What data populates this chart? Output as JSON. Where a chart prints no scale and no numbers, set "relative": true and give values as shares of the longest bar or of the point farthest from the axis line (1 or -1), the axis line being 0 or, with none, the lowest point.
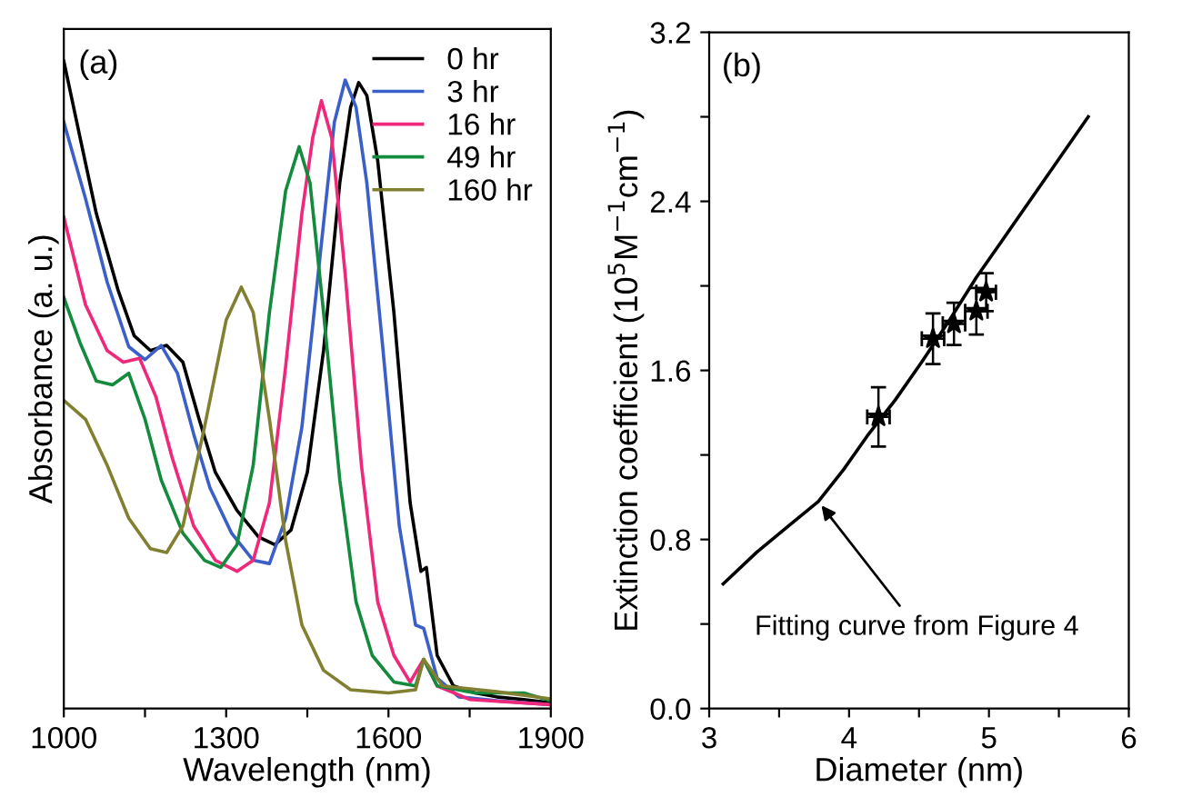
{
  "chart_data": [
    {
      "type": "line",
      "relative": true,
      "xlabel": "Wavelength (nm)",
      "ylabel": "Absorbance (a. u.)",
      "annotations": [
        "(a)"
      ],
      "xlim": [
        1000,
        1900
      ],
      "xticks": [
        1000,
        {
          "value": 1150,
          "label": null
        },
        1300,
        {
          "value": 1450,
          "label": null
        },
        1600,
        {
          "value": 1750,
          "label": null
        },
        1900
      ],
      "tick_labels": "x",
      "legend": "top right",
      "grid": false,
      "line_style": "solid",
      "marker": "none",
      "series": [
        {
          "name": "0 hr",
          "color": "#000000",
          "x": [
            1000,
            1030,
            1060,
            1100,
            1130,
            1160,
            1190,
            1220,
            1250,
            1280,
            1320,
            1360,
            1390,
            1420,
            1450,
            1480,
            1510,
            1530,
            1545,
            1560,
            1580,
            1610,
            1640,
            1660,
            1670,
            1690,
            1720,
            1760,
            1800,
            1850,
            1900
          ],
          "values": [
            1.0,
            0.882,
            0.765,
            0.647,
            0.576,
            0.553,
            0.561,
            0.535,
            0.447,
            0.365,
            0.306,
            0.265,
            0.253,
            0.276,
            0.365,
            0.553,
            0.812,
            0.929,
            0.967,
            0.947,
            0.847,
            0.612,
            0.318,
            0.212,
            0.218,
            0.082,
            0.035,
            0.024,
            0.018,
            0.014,
            0.009
          ]
        },
        {
          "name": "3 hr",
          "color": "#3a5fc8",
          "x": [
            1000,
            1040,
            1080,
            1120,
            1150,
            1180,
            1210,
            1240,
            1270,
            1310,
            1350,
            1380,
            1410,
            1440,
            1470,
            1500,
            1520,
            1540,
            1560,
            1590,
            1620,
            1650,
            1665,
            1690,
            1730,
            1800,
            1900
          ],
          "values": [
            0.906,
            0.788,
            0.659,
            0.559,
            0.539,
            0.561,
            0.518,
            0.424,
            0.341,
            0.271,
            0.229,
            0.224,
            0.294,
            0.435,
            0.671,
            0.906,
            0.971,
            0.929,
            0.812,
            0.553,
            0.282,
            0.129,
            0.124,
            0.047,
            0.018,
            0.012,
            0.006
          ]
        },
        {
          "name": "16 hr",
          "color": "#f0287a",
          "x": [
            1000,
            1040,
            1080,
            1110,
            1140,
            1170,
            1200,
            1240,
            1280,
            1320,
            1350,
            1380,
            1410,
            1440,
            1460,
            1476,
            1495,
            1520,
            1550,
            1580,
            1610,
            1640,
            1665,
            1690,
            1750,
            1900
          ],
          "values": [
            0.759,
            0.624,
            0.553,
            0.535,
            0.541,
            0.482,
            0.388,
            0.282,
            0.229,
            0.212,
            0.229,
            0.318,
            0.529,
            0.765,
            0.882,
            0.939,
            0.882,
            0.671,
            0.376,
            0.165,
            0.082,
            0.041,
            0.076,
            0.035,
            0.014,
            0.006
          ]
        },
        {
          "name": "49 hr",
          "color": "#138a3c",
          "x": [
            1000,
            1030,
            1060,
            1090,
            1120,
            1150,
            1180,
            1220,
            1260,
            1290,
            1320,
            1350,
            1380,
            1410,
            1435,
            1455,
            1480,
            1510,
            1540,
            1570,
            1610,
            1650,
            1665,
            1690,
            1760,
            1850,
            1900
          ],
          "values": [
            0.635,
            0.565,
            0.506,
            0.5,
            0.518,
            0.447,
            0.353,
            0.271,
            0.229,
            0.218,
            0.253,
            0.376,
            0.612,
            0.8,
            0.868,
            0.812,
            0.612,
            0.353,
            0.165,
            0.082,
            0.041,
            0.035,
            0.076,
            0.035,
            0.024,
            0.024,
            0.012
          ]
        },
        {
          "name": "160 hr",
          "color": "#808030",
          "x": [
            1000,
            1040,
            1080,
            1120,
            1160,
            1190,
            1220,
            1260,
            1300,
            1328,
            1350,
            1380,
            1410,
            1440,
            1480,
            1530,
            1600,
            1650,
            1665,
            1700,
            1800,
            1900
          ],
          "values": [
            0.476,
            0.447,
            0.376,
            0.294,
            0.247,
            0.241,
            0.282,
            0.435,
            0.6,
            0.651,
            0.612,
            0.447,
            0.259,
            0.129,
            0.059,
            0.029,
            0.024,
            0.029,
            0.076,
            0.035,
            0.026,
            0.015
          ]
        }
      ]
    },
    {
      "type": "scatter",
      "xlabel": "Diameter (nm)",
      "ylabel": "Extinction coefficient (10$^{5}$M$^{−1}$cm$^{−1}$)",
      "annotations": [
        "(b)",
        {
          "text": "Fitting curve from Figure 4",
          "x": 3.78,
          "y": 0.98
        }
      ],
      "xlim": [
        3,
        6
      ],
      "xticks": [
        3,
        {
          "value": 3.5,
          "label": null
        },
        4,
        {
          "value": 4.5,
          "label": null
        },
        5,
        {
          "value": 5.5,
          "label": null
        },
        6
      ],
      "ylim": [
        0,
        3.2
      ],
      "yticks": [
        {
          "value": 0,
          "label": "0.0"
        },
        {
          "value": 0.4,
          "label": null
        },
        0.8,
        {
          "value": 1.2,
          "label": null
        },
        1.6,
        {
          "value": 2.0,
          "label": null
        },
        2.4,
        {
          "value": 2.8,
          "label": null
        },
        3.2
      ],
      "legend": false,
      "grid": false,
      "series": [
        {
          "type": "scatter",
          "color": "#000000",
          "marker": "star",
          "x": [
            4.21,
            4.6,
            4.75,
            4.91,
            4.98
          ],
          "values": [
            1.38,
            1.75,
            1.82,
            1.88,
            1.97
          ],
          "errors": [
            0.14,
            0.12,
            0.1,
            0.11,
            0.09
          ],
          "xerrors": [
            0.08,
            0.08,
            0.08,
            0.08,
            0.07
          ]
        },
        {
          "type": "line",
          "color": "#000000",
          "marker": "none",
          "line_style": "solid",
          "x": [
            3.1,
            3.34,
            3.56,
            3.78,
            3.96,
            4.13,
            4.33,
            4.52,
            4.72,
            4.91,
            5.1,
            5.3,
            5.5,
            5.71
          ],
          "values": [
            0.59,
            0.74,
            0.86,
            0.98,
            1.13,
            1.29,
            1.46,
            1.64,
            1.84,
            2.04,
            2.22,
            2.41,
            2.6,
            2.8
          ]
        }
      ]
    }
  ]
}
